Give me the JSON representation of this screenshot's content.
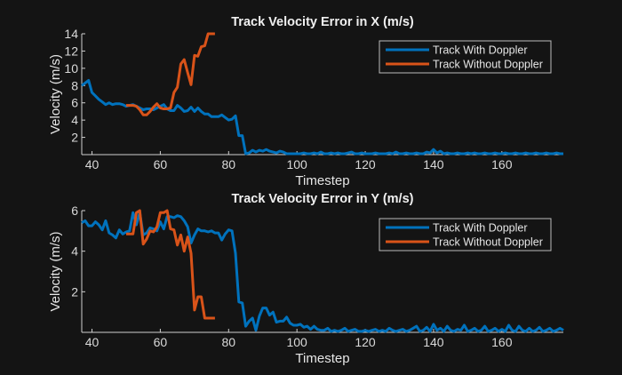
{
  "chart_data": [
    {
      "type": "line",
      "title": "Track Velocity Error in X (m/s)",
      "xlabel": "Timestep",
      "ylabel": "Velocity (m/s)",
      "xlim": [
        37,
        178
      ],
      "ylim": [
        0,
        14
      ],
      "xticks": [
        40,
        60,
        80,
        100,
        120,
        140,
        160
      ],
      "yticks": [
        2,
        4,
        6,
        8,
        10,
        12,
        14
      ],
      "grid": false,
      "legend": "top-right",
      "series": [
        {
          "name": "Track With Doppler",
          "color": "#0072BD",
          "x_first": 37,
          "values": [
            8,
            8.3,
            8.6,
            7.2,
            6.8,
            6.4,
            6.1,
            5.8,
            6.0,
            5.8,
            5.9,
            5.9,
            5.8,
            5.6,
            5.7,
            5.8,
            5.6,
            5.4,
            5.2,
            5.3,
            5.3,
            5.2,
            5.4,
            5.6,
            5.8,
            5.3,
            5.1,
            5.1,
            5.7,
            5.4,
            5.0,
            5.1,
            5.5,
            5.0,
            5.4,
            5.0,
            4.7,
            4.7,
            4.4,
            4.4,
            4.4,
            4.6,
            4.3,
            4.0,
            4.1,
            4.5,
            2.2,
            2.2,
            0.1,
            0.2,
            0.5,
            0.3,
            0.5,
            0.4,
            0.6,
            0.4,
            0.3,
            0.2,
            0.4,
            0.3,
            0.1,
            0.1,
            0.1,
            0.1,
            0.1,
            0.2,
            0.1,
            0.1,
            0.2,
            0.1,
            0.3,
            0.1,
            0.1,
            0.2,
            0.1,
            0.2,
            0.1,
            0.1,
            0.2,
            0.3,
            0.1,
            0.1,
            0.2,
            0.1,
            0.1,
            0.1,
            0.2,
            0.1,
            0.1,
            0.1,
            0.2,
            0.1,
            0.3,
            0.1,
            0.1,
            0.2,
            0.1,
            0.1,
            0.2,
            0.1,
            0.1,
            0.3,
            0.2,
            0.6,
            0.2,
            0.4,
            0.1,
            0.2,
            0.1,
            0.1,
            0.2,
            0.1,
            0.1,
            0.2,
            0.1,
            0.2,
            0.1,
            0.1,
            0.2,
            0.1,
            0.1,
            0.2,
            0.1,
            0.1,
            0.2,
            0.1,
            0.1,
            0.2,
            0.1,
            0.1,
            0.2,
            0.1,
            0.1,
            0.2,
            0.1,
            0.1,
            0.2,
            0.1,
            0.1,
            0.2,
            0.1,
            0.1
          ]
        },
        {
          "name": "Track Without Doppler",
          "color": "#D95319",
          "x_first": 50,
          "values": [
            5.7,
            5.7,
            5.7,
            5.6,
            5.2,
            4.6,
            4.6,
            5.0,
            5.5,
            5.9,
            5.4,
            5.3,
            5.3,
            5.4,
            7.2,
            7.8,
            10.5,
            11.0,
            9.5,
            8.1,
            11.5,
            11.4,
            12.5,
            12.6,
            14,
            14,
            14
          ]
        }
      ]
    },
    {
      "type": "line",
      "title": "Track Velocity Error in Y (m/s)",
      "xlabel": "Timestep",
      "ylabel": "Velocity (m/s)",
      "xlim": [
        37,
        178
      ],
      "ylim": [
        0,
        6
      ],
      "xticks": [
        40,
        60,
        80,
        100,
        120,
        140,
        160
      ],
      "yticks": [
        2,
        4,
        6
      ],
      "grid": false,
      "legend": "top-right",
      "series": [
        {
          "name": "Track With Doppler",
          "color": "#0072BD",
          "x_first": 37,
          "values": [
            5.4,
            5.5,
            5.25,
            5.25,
            5.45,
            5.3,
            5.05,
            5.5,
            4.9,
            4.8,
            4.65,
            5.05,
            4.85,
            4.95,
            5.0,
            5.9,
            5.3,
            5.9,
            4.8,
            4.9,
            5.15,
            5.1,
            5.0,
            5.45,
            5.1,
            5.7,
            5.7,
            5.65,
            5.75,
            5.7,
            5.5,
            5.2,
            4.4,
            4.8,
            5.1,
            5.0,
            5.0,
            4.95,
            5.0,
            4.9,
            4.9,
            4.55,
            4.85,
            5.05,
            5.0,
            3.9,
            1.5,
            1.45,
            0.3,
            0.55,
            0.7,
            0.1,
            0.8,
            1.2,
            1.2,
            0.85,
            1.0,
            0.5,
            0.55,
            0.55,
            0.75,
            0.45,
            0.35,
            0.35,
            0.4,
            0.25,
            0.3,
            0.15,
            0.3,
            0.15,
            0.1,
            0.1,
            0.2,
            0.05,
            0.1,
            0.05,
            0.1,
            0.2,
            0.05,
            0.1,
            0.15,
            0.05,
            0.05,
            0.1,
            0.05,
            0.1,
            0.15,
            0.05,
            0.1,
            0.05,
            0.2,
            0.1,
            0.05,
            0.1,
            0.15,
            0.05,
            0.1,
            0.2,
            0.3,
            0.05,
            0.1,
            0.25,
            0.05,
            0.4,
            0.1,
            0.2,
            0.05,
            0.3,
            0.1,
            0.05,
            0.15,
            0.1,
            0.35,
            0.05,
            0.1,
            0.2,
            0.05,
            0.1,
            0.3,
            0.05,
            0.1,
            0.2,
            0.05,
            0.15,
            0.05,
            0.35,
            0.1,
            0.05,
            0.3,
            0.1,
            0.05,
            0.2,
            0.05,
            0.1,
            0.25,
            0.05,
            0.1,
            0.2,
            0.05,
            0.1,
            0.2,
            0.1
          ]
        },
        {
          "name": "Track Without Doppler",
          "color": "#D95319",
          "x_first": 50,
          "values": [
            4.85,
            4.85,
            4.85,
            5.9,
            6.0,
            4.35,
            4.6,
            5.0,
            4.95,
            5.2,
            5.9,
            5.9,
            6.0,
            5.1,
            5.05,
            4.3,
            4.8,
            4.0,
            4.7,
            3.9,
            1.1,
            1.75,
            1.75,
            0.7,
            0.7,
            0.7,
            0.7
          ]
        }
      ]
    }
  ]
}
